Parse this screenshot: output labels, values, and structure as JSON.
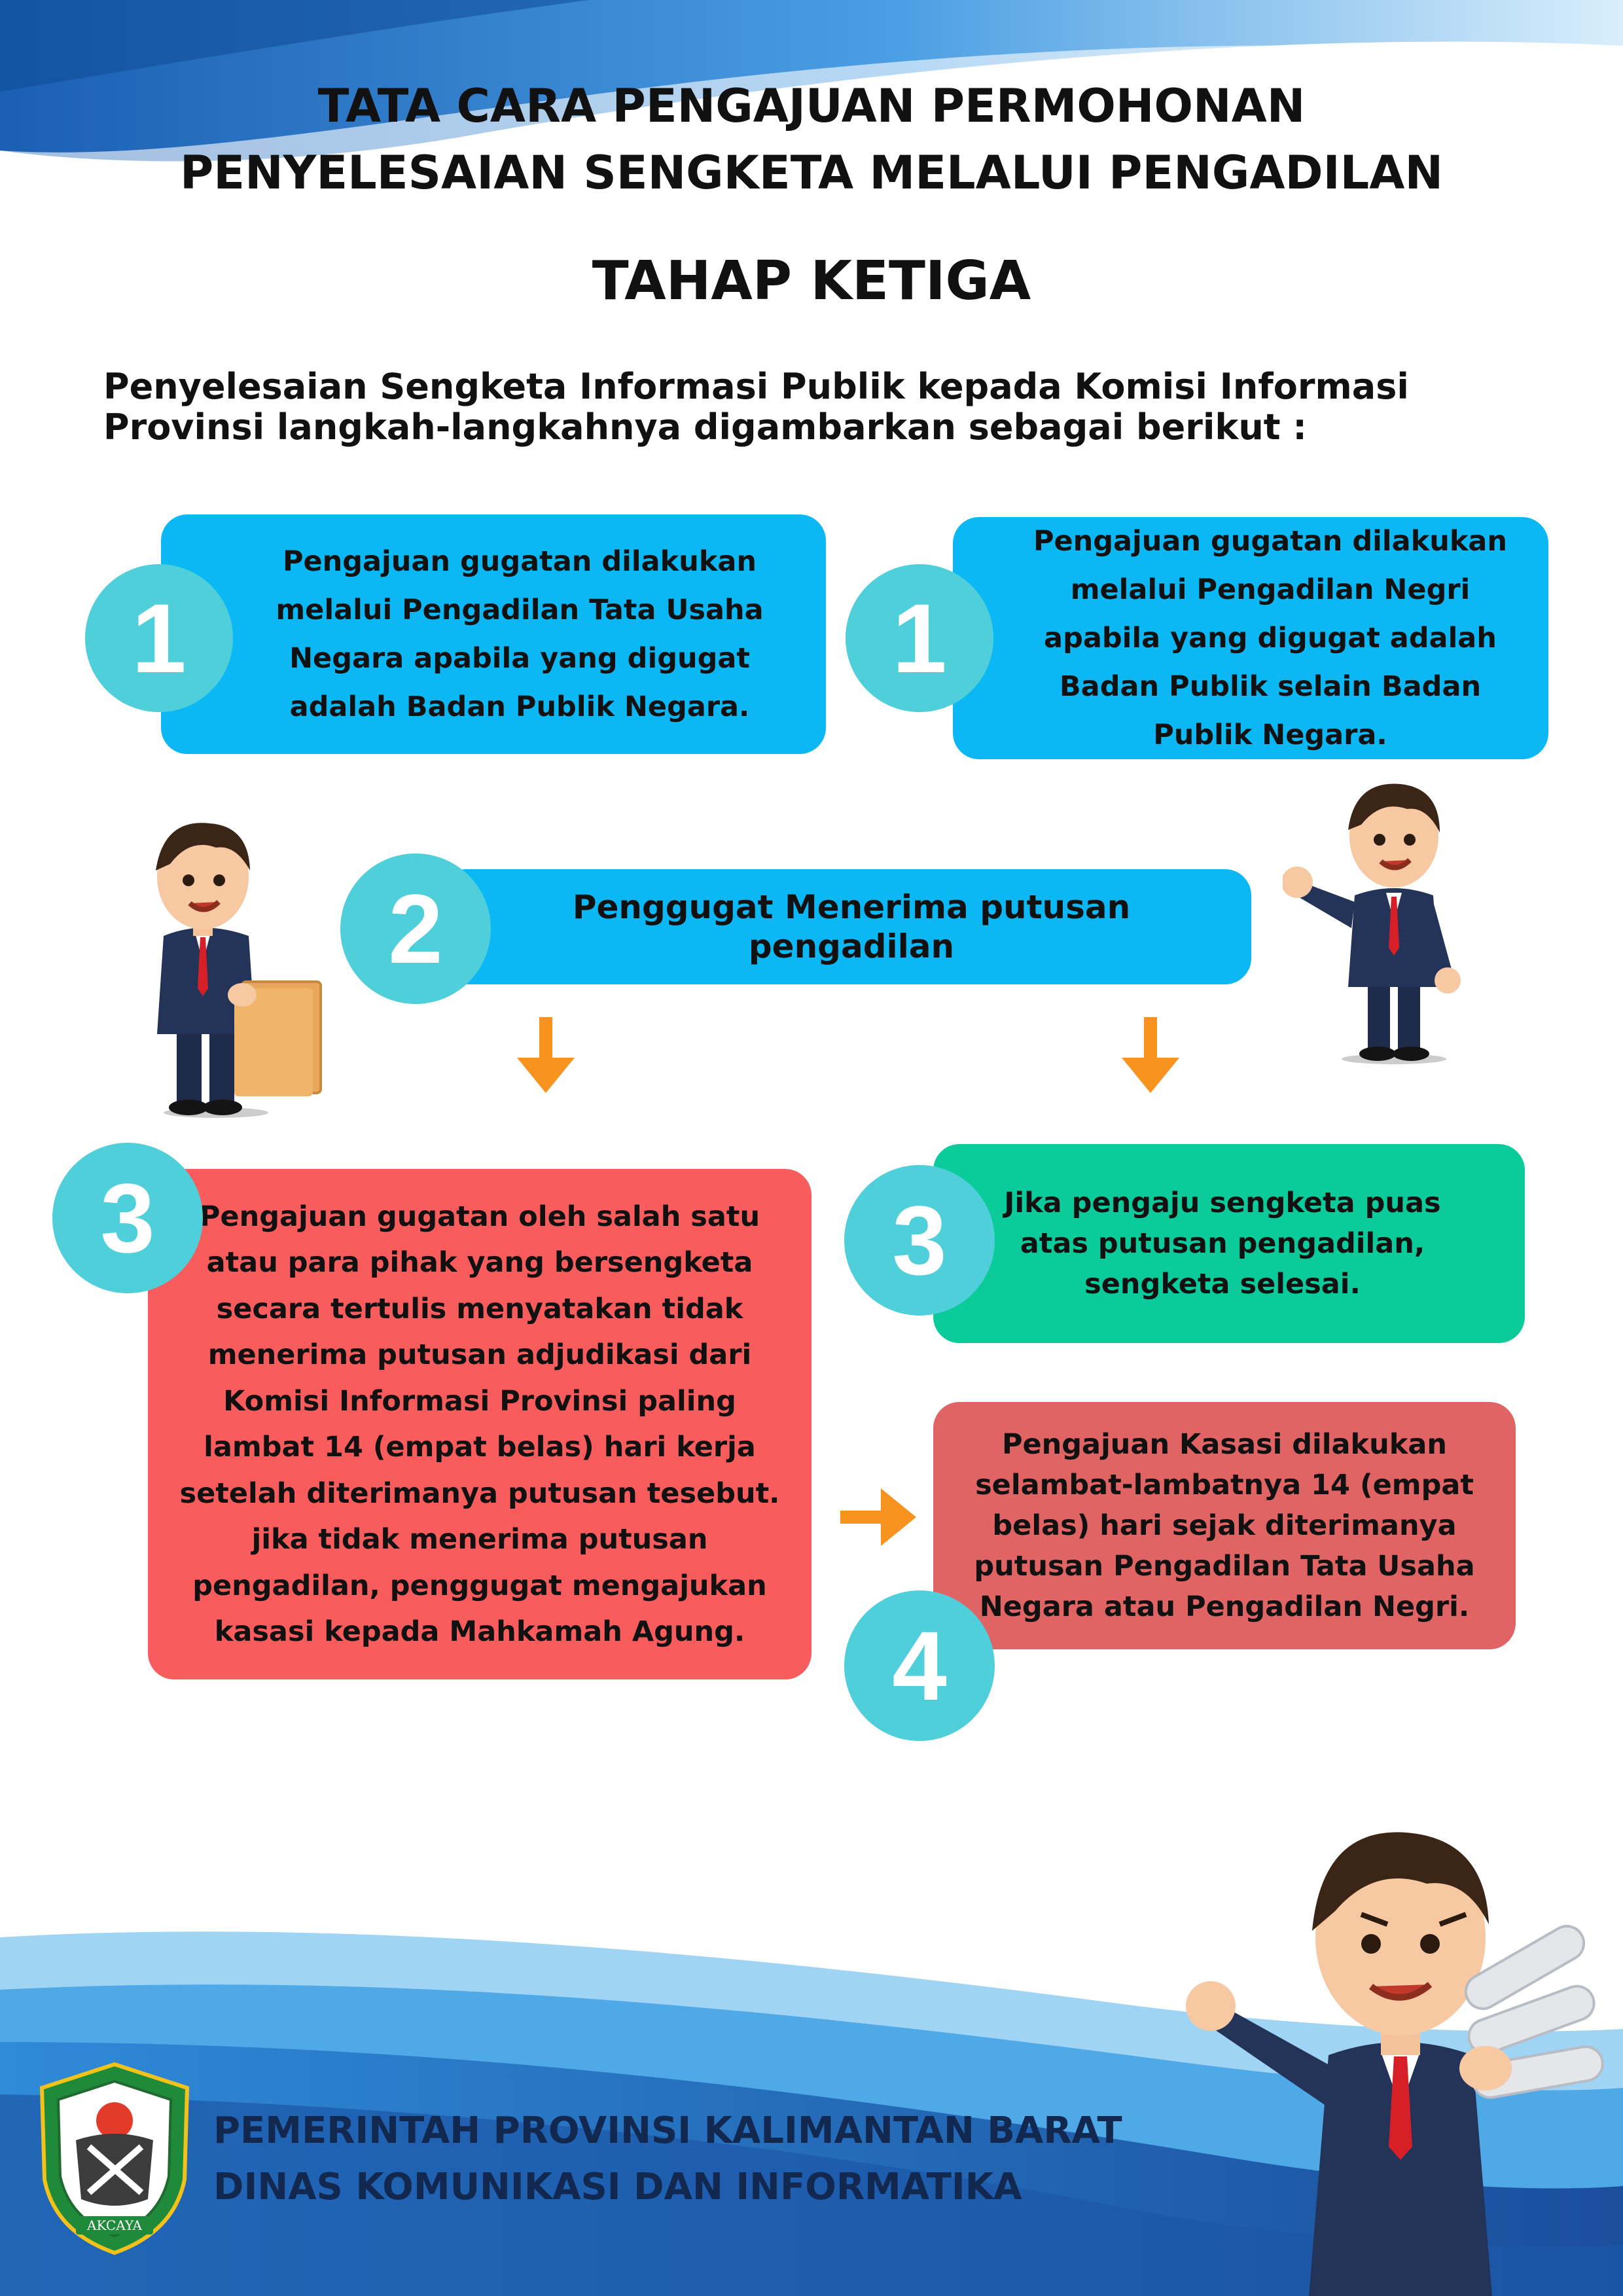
{
  "title": {
    "line1": "TATA CARA PENGAJUAN PERMOHONAN",
    "line2": "PENYELESAIAN SENGKETA MELALUI PENGADILAN",
    "stage": "TAHAP KETIGA"
  },
  "intro": "Penyelesaian Sengketa Informasi Publik kepada Komisi Informasi Provinsi langkah-langkahnya digambarkan sebagai berikut :",
  "steps": {
    "step1a": {
      "number": "1",
      "text": "Pengajuan gugatan dilakukan melalui Pengadilan Tata Usaha Negara apabila yang digugat adalah Badan Publik Negara."
    },
    "step1b": {
      "number": "1",
      "text": "Pengajuan gugatan dilakukan melalui Pengadilan Negri apabila yang digugat adalah Badan Publik selain Badan Publik Negara."
    },
    "step2": {
      "number": "2",
      "text": "Penggugat Menerima putusan pengadilan"
    },
    "step3a": {
      "number": "3",
      "text": "Pengajuan gugatan oleh salah satu atau para pihak yang bersengketa secara tertulis menyatakan tidak menerima putusan adjudikasi dari Komisi Informasi Provinsi paling lambat 14 (empat belas) hari kerja setelah diterimanya putusan tesebut. jika tidak menerima putusan pengadilan, penggugat mengajukan kasasi kepada Mahkamah Agung."
    },
    "step3b": {
      "number": "3",
      "text": "Jika pengaju sengketa puas atas putusan pengadilan, sengketa selesai."
    },
    "step4": {
      "number": "4",
      "text": "Pengajuan Kasasi dilakukan selambat-lambatnya 14 (empat belas) hari sejak diterimanya putusan Pengadilan Tata Usaha Negara atau Pengadilan Negri."
    }
  },
  "footer": {
    "line1": "PEMERINTAH PROVINSI KALIMANTAN BARAT",
    "line2": "DINAS KOMUNIKASI DAN INFORMATIKA"
  },
  "emblem_text": "AKCAYA",
  "colors": {
    "cyan_box": "#0bb8f3",
    "red_box": "#f85c5c",
    "green_box": "#0ccb9b",
    "rose_box": "#e06464",
    "number_circle": "#4fcfda",
    "arrow": "#f7931e",
    "wave_blue": "#3a8fd8"
  },
  "icons": [
    "arrow-down-icon",
    "arrow-right-icon",
    "businessman-illustration",
    "provincial-emblem"
  ]
}
